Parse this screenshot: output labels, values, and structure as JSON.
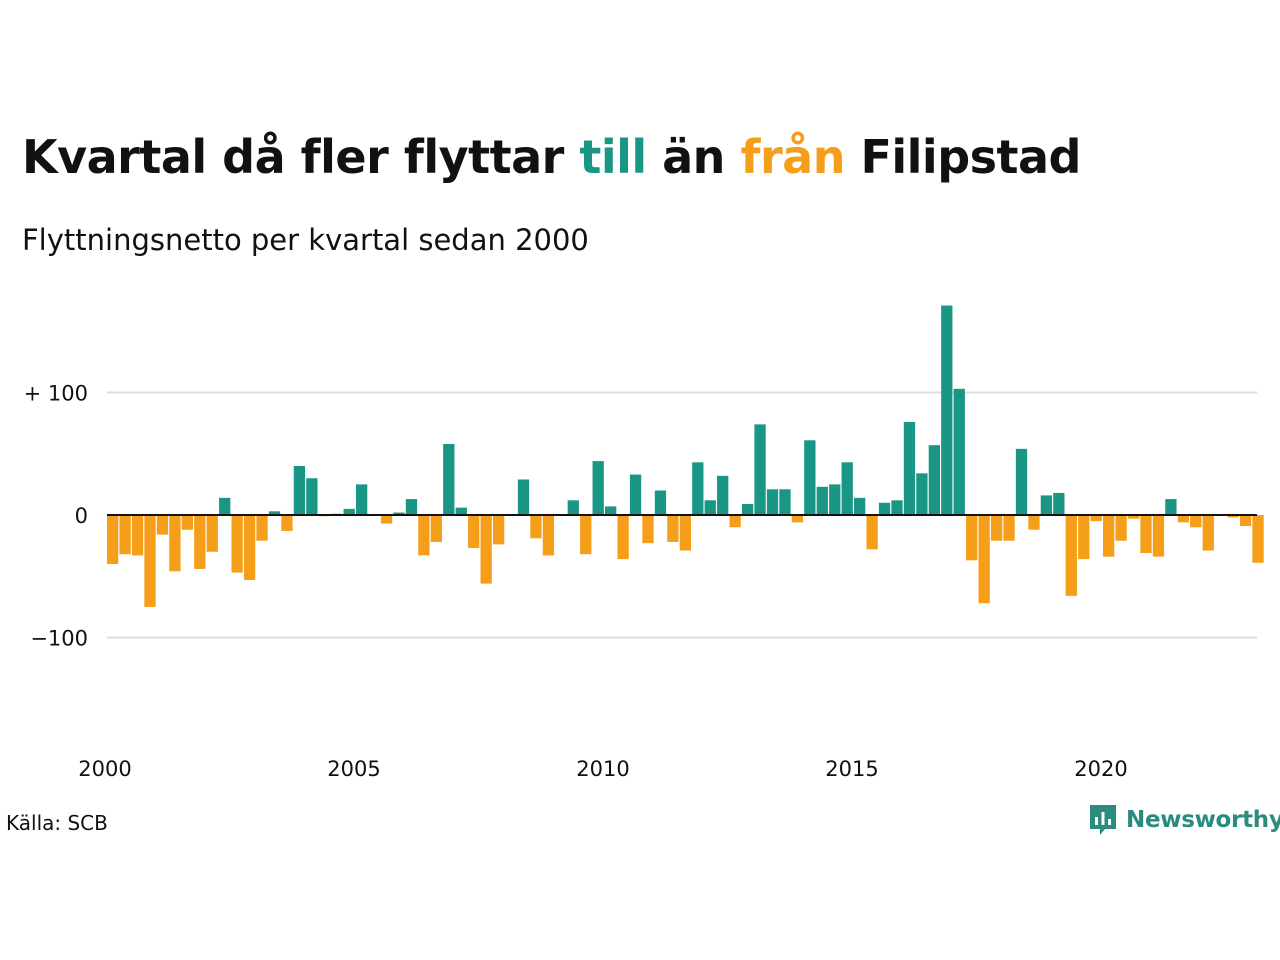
{
  "title": {
    "part1": "Kvartal då fler flyttar ",
    "word_in": "till",
    "part2": " än ",
    "word_out": "från",
    "part3": " Filipstad"
  },
  "subtitle": "Flyttningsnetto per kvartal sedan 2000",
  "source": "Källa: SCB",
  "brand": "Newsworthy",
  "colors": {
    "positive": "#1a9684",
    "negative": "#f59e19",
    "gridline": "#dcdcdc",
    "zeroline": "#111111",
    "brand": "#2a8c7e"
  },
  "chart_data": {
    "type": "bar",
    "x_start": "2000 Q1",
    "x_tick_labels": [
      "2000",
      "2005",
      "2010",
      "2015",
      "2020"
    ],
    "y_tick_labels": [
      "+ 100",
      "0",
      "−100"
    ],
    "y_ticks": [
      100,
      0,
      -100
    ],
    "ylim": [
      -190,
      180
    ],
    "grid": true,
    "values": [
      -40,
      -32,
      -33,
      -75,
      -16,
      -46,
      -12,
      -44,
      -30,
      14,
      -47,
      -53,
      -21,
      3,
      -13,
      40,
      30,
      -1,
      1,
      5,
      25,
      0,
      -7,
      2,
      13,
      -33,
      -22,
      58,
      6,
      -27,
      -56,
      -24,
      0,
      29,
      -19,
      -33,
      0,
      12,
      -32,
      44,
      7,
      -36,
      33,
      -23,
      20,
      -22,
      -29,
      43,
      12,
      32,
      -10,
      9,
      74,
      21,
      21,
      -6,
      61,
      23,
      25,
      43,
      14,
      -28,
      10,
      12,
      76,
      34,
      57,
      171,
      103,
      -37,
      -72,
      -21,
      -21,
      54,
      -12,
      16,
      18,
      -66,
      -36,
      -5,
      -34,
      -21,
      -3,
      -31,
      -34,
      13,
      -6,
      -10,
      -29,
      0,
      -2,
      -9,
      -39
    ]
  }
}
